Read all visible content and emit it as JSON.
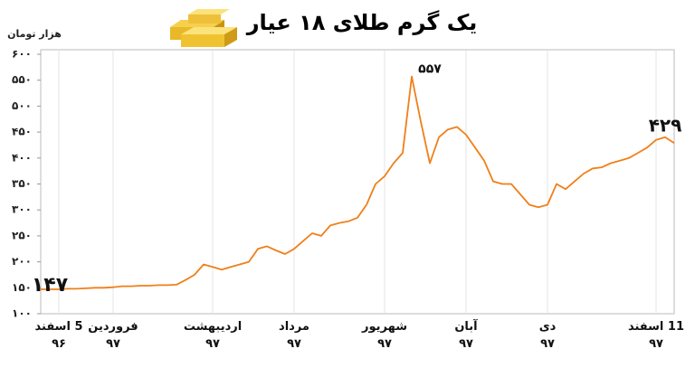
{
  "chart_data": {
    "type": "line",
    "title": "یک گرم طلای ۱۸ عیار",
    "y_label": "هزار تومان",
    "color": "#f07f1a",
    "categories": [
      null,
      null,
      "5 اسفند\n۹۶",
      null,
      null,
      null,
      null,
      null,
      "فروردین\n۹۷",
      null,
      null,
      null,
      null,
      null,
      null,
      null,
      null,
      null,
      null,
      "اردیبهشت\n۹۷",
      null,
      null,
      null,
      null,
      null,
      null,
      null,
      null,
      "مرداد\n۹۷",
      null,
      null,
      null,
      null,
      null,
      null,
      null,
      null,
      null,
      "شهریور\n۹۷",
      null,
      null,
      null,
      null,
      null,
      null,
      null,
      null,
      "آبان\n۹۷",
      null,
      null,
      null,
      null,
      null,
      null,
      null,
      null,
      "دی\n۹۷",
      null,
      null,
      null,
      null,
      null,
      null,
      null,
      null,
      null,
      null,
      null,
      "11 اسفند\n۹۷",
      null,
      null
    ],
    "values": [
      147,
      147,
      147,
      148,
      148,
      149,
      150,
      150,
      151,
      153,
      153,
      154,
      154,
      155,
      155,
      156,
      165,
      175,
      195,
      190,
      185,
      190,
      195,
      200,
      225,
      230,
      222,
      215,
      225,
      240,
      255,
      250,
      270,
      275,
      278,
      285,
      310,
      350,
      365,
      390,
      410,
      557,
      470,
      390,
      440,
      455,
      460,
      445,
      420,
      395,
      355,
      350,
      350,
      330,
      310,
      305,
      310,
      350,
      340,
      355,
      370,
      380,
      382,
      390,
      395,
      400,
      410,
      420,
      435,
      440,
      429
    ],
    "annotations": [
      "۱۴۷",
      "۵۵۷",
      "۴۲۹"
    ],
    "ylim": [
      100,
      600
    ],
    "yticks": [
      {
        "value": 100,
        "label": "۱۰۰"
      },
      {
        "value": 150,
        "label": "۱۵۰"
      },
      {
        "value": 200,
        "label": "۲۰۰"
      },
      {
        "value": 250,
        "label": "۲۵۰"
      },
      {
        "value": 300,
        "label": "۳۰۰"
      },
      {
        "value": 350,
        "label": "۳۵۰"
      },
      {
        "value": 400,
        "label": "۴۰۰"
      },
      {
        "value": 450,
        "label": "۴۵۰"
      },
      {
        "value": 500,
        "label": "۵۰۰"
      },
      {
        "value": 550,
        "label": "۵۵۰"
      },
      {
        "value": 600,
        "label": "۶۰۰"
      }
    ],
    "grid": true
  }
}
